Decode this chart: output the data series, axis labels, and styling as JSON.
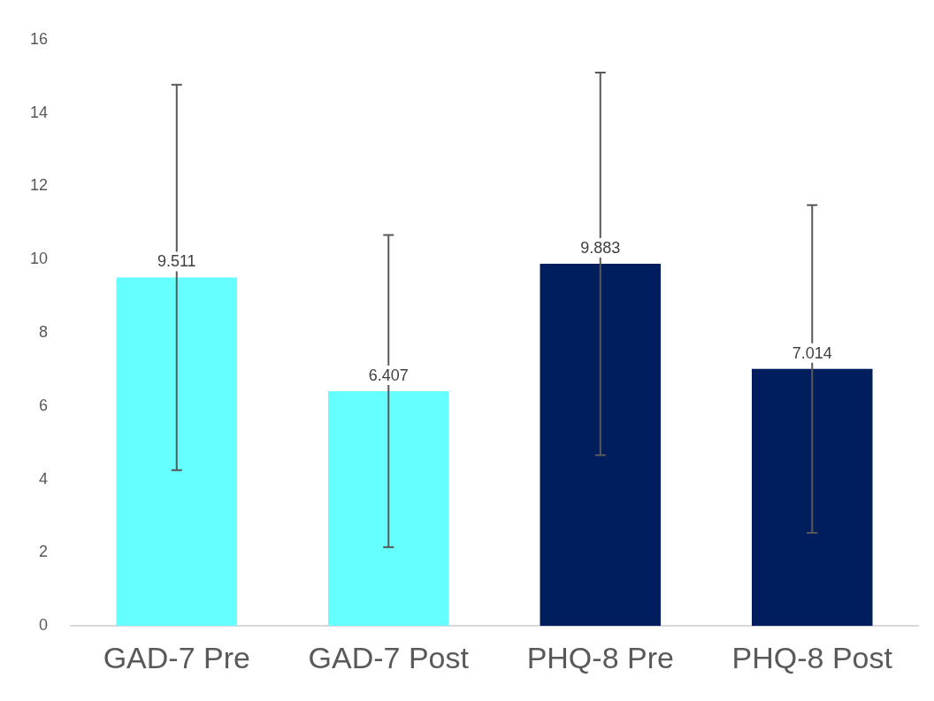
{
  "chart_data": {
    "type": "bar",
    "categories": [
      "GAD-7 Pre",
      "GAD-7 Post",
      "PHQ-8 Pre",
      "PHQ-8 Post"
    ],
    "values": [
      9.511,
      6.407,
      9.883,
      7.014
    ],
    "colors": [
      "#66ffff",
      "#66ffff",
      "#001e5e",
      "#001e5e"
    ],
    "errors": [
      5.26,
      4.26,
      5.22,
      4.47
    ],
    "ylim": [
      0,
      16
    ],
    "yticks": [
      0,
      2,
      4,
      6,
      8,
      10,
      12,
      14,
      16
    ],
    "data_labels": true,
    "grid": false,
    "legend": false
  }
}
